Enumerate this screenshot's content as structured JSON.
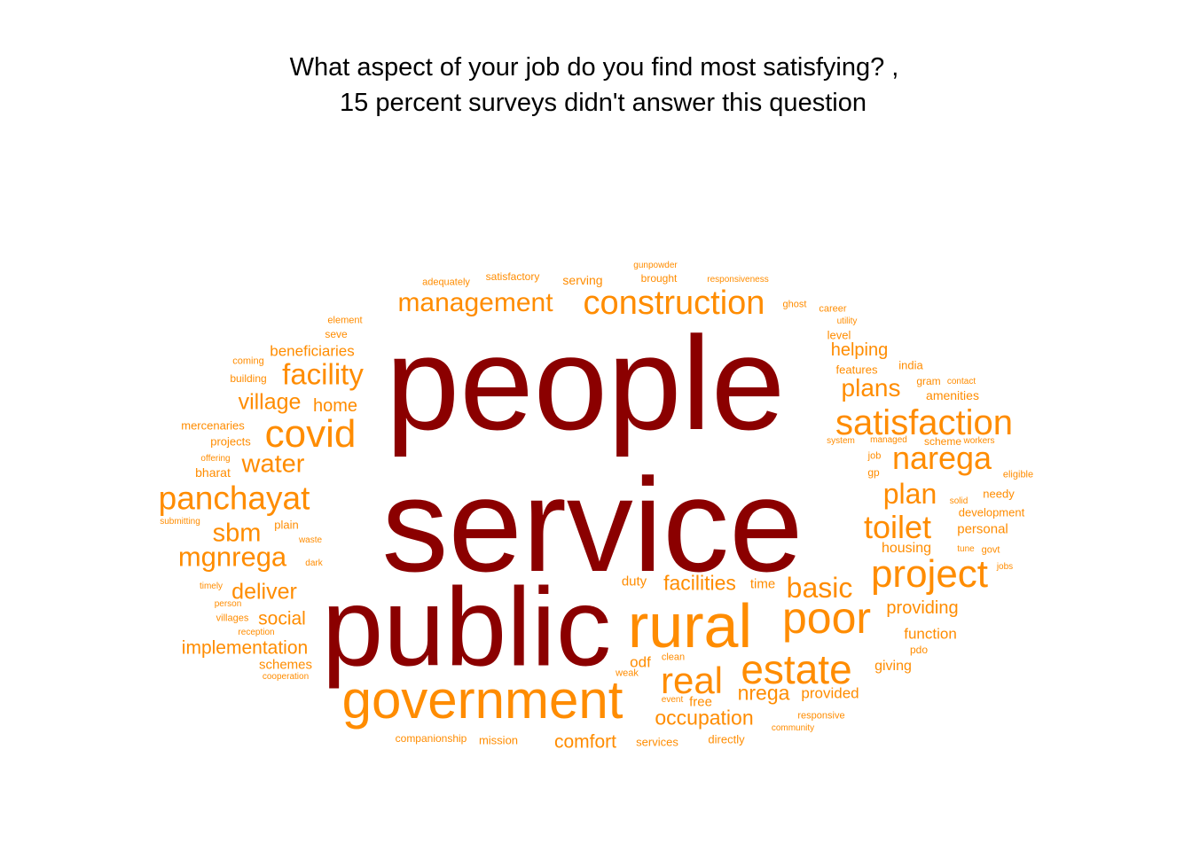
{
  "title": {
    "line1": "What aspect of your job do you find most satisfying? ,",
    "line2": "15 percent surveys didn't answer this question"
  },
  "colors": {
    "top_words": "#8b0000",
    "other_words": "#ff8c00"
  },
  "words": [
    {
      "text": "people",
      "tier": "dark"
    },
    {
      "text": "service",
      "tier": "dark"
    },
    {
      "text": "public",
      "tier": "dark"
    },
    {
      "text": "government",
      "tier": "org"
    },
    {
      "text": "rural",
      "tier": "org"
    },
    {
      "text": "construction",
      "tier": "org"
    },
    {
      "text": "management",
      "tier": "org"
    },
    {
      "text": "satisfaction",
      "tier": "org"
    },
    {
      "text": "panchayat",
      "tier": "org"
    },
    {
      "text": "covid",
      "tier": "org"
    },
    {
      "text": "facility",
      "tier": "org"
    },
    {
      "text": "project",
      "tier": "org"
    },
    {
      "text": "poor",
      "tier": "org"
    },
    {
      "text": "estate",
      "tier": "org"
    },
    {
      "text": "real",
      "tier": "org"
    },
    {
      "text": "naregа",
      "tier": "org"
    },
    {
      "text": "mgnrega",
      "tier": "org"
    },
    {
      "text": "toilet",
      "tier": "org"
    },
    {
      "text": "plan",
      "tier": "org"
    },
    {
      "text": "water",
      "tier": "org"
    },
    {
      "text": "sbm",
      "tier": "org"
    },
    {
      "text": "basic",
      "tier": "org"
    },
    {
      "text": "plans",
      "tier": "org"
    },
    {
      "text": "village",
      "tier": "org"
    },
    {
      "text": "deliver",
      "tier": "org"
    },
    {
      "text": "implementation",
      "tier": "org"
    },
    {
      "text": "facilities",
      "tier": "org"
    },
    {
      "text": "occupation",
      "tier": "org"
    },
    {
      "text": "nrega",
      "tier": "org"
    },
    {
      "text": "comfort",
      "tier": "org"
    },
    {
      "text": "helping",
      "tier": "org"
    },
    {
      "text": "home",
      "tier": "org"
    },
    {
      "text": "social",
      "tier": "org"
    },
    {
      "text": "providing",
      "tier": "org"
    },
    {
      "text": "beneficiaries",
      "tier": "org"
    },
    {
      "text": "provided",
      "tier": "org"
    },
    {
      "text": "function",
      "tier": "org"
    },
    {
      "text": "housing",
      "tier": "org"
    },
    {
      "text": "giving",
      "tier": "org"
    },
    {
      "text": "odf",
      "tier": "org"
    },
    {
      "text": "duty",
      "tier": "org"
    },
    {
      "text": "time",
      "tier": "org"
    },
    {
      "text": "schemes",
      "tier": "org"
    },
    {
      "text": "personal",
      "tier": "org"
    },
    {
      "text": "serving",
      "tier": "org"
    },
    {
      "text": "amenities",
      "tier": "org"
    },
    {
      "text": "free",
      "tier": "org"
    },
    {
      "text": "development",
      "tier": "org"
    },
    {
      "text": "mission",
      "tier": "org"
    },
    {
      "text": "services",
      "tier": "org"
    },
    {
      "text": "directly",
      "tier": "org"
    },
    {
      "text": "needy",
      "tier": "org"
    },
    {
      "text": "plain",
      "tier": "org"
    },
    {
      "text": "projects",
      "tier": "org"
    },
    {
      "text": "bharat",
      "tier": "org"
    },
    {
      "text": "mercenaries",
      "tier": "org"
    },
    {
      "text": "companionship",
      "tier": "org"
    },
    {
      "text": "features",
      "tier": "org"
    },
    {
      "text": "level",
      "tier": "org"
    },
    {
      "text": "india",
      "tier": "org"
    },
    {
      "text": "gram",
      "tier": "org"
    },
    {
      "text": "scheme",
      "tier": "org"
    },
    {
      "text": "satisfactory",
      "tier": "org"
    },
    {
      "text": "brought",
      "tier": "org"
    },
    {
      "text": "adequately",
      "tier": "org"
    },
    {
      "text": "seve",
      "tier": "org"
    },
    {
      "text": "building",
      "tier": "org"
    },
    {
      "text": "coming",
      "tier": "org"
    },
    {
      "text": "element",
      "tier": "org"
    },
    {
      "text": "gunpowder",
      "tier": "org"
    },
    {
      "text": "responsiveness",
      "tier": "org"
    },
    {
      "text": "ghost",
      "tier": "org"
    },
    {
      "text": "career",
      "tier": "org"
    },
    {
      "text": "utility",
      "tier": "org"
    },
    {
      "text": "contact",
      "tier": "org"
    },
    {
      "text": "workers",
      "tier": "org"
    },
    {
      "text": "managed",
      "tier": "org"
    },
    {
      "text": "system",
      "tier": "org"
    },
    {
      "text": "job",
      "tier": "org"
    },
    {
      "text": "gp",
      "tier": "org"
    },
    {
      "text": "eligible",
      "tier": "org"
    },
    {
      "text": "solid",
      "tier": "org"
    },
    {
      "text": "tune",
      "tier": "org"
    },
    {
      "text": "govt",
      "tier": "org"
    },
    {
      "text": "jobs",
      "tier": "org"
    },
    {
      "text": "offering",
      "tier": "org"
    },
    {
      "text": "submitting",
      "tier": "org"
    },
    {
      "text": "waste",
      "tier": "org"
    },
    {
      "text": "dark",
      "tier": "org"
    },
    {
      "text": "timely",
      "tier": "org"
    },
    {
      "text": "person",
      "tier": "org"
    },
    {
      "text": "villages",
      "tier": "org"
    },
    {
      "text": "reception",
      "tier": "org"
    },
    {
      "text": "cooperation",
      "tier": "org"
    },
    {
      "text": "clean",
      "tier": "org"
    },
    {
      "text": "weak",
      "tier": "org"
    },
    {
      "text": "event",
      "tier": "org"
    },
    {
      "text": "pdo",
      "tier": "org"
    },
    {
      "text": "responsive",
      "tier": "org"
    },
    {
      "text": "community",
      "tier": "org"
    }
  ]
}
